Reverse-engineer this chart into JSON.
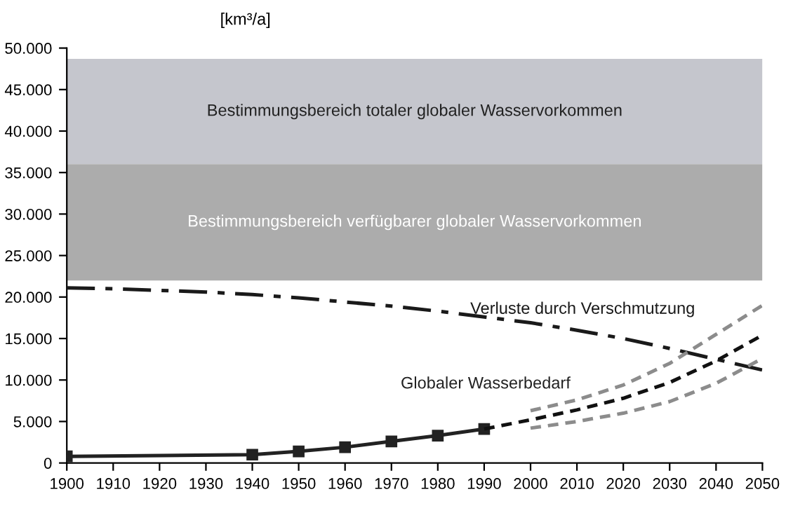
{
  "chart_data": {
    "type": "line",
    "ylabel": "[km³/a]",
    "xlim": [
      1900,
      2050
    ],
    "xticks": [
      1900,
      1910,
      1920,
      1930,
      1940,
      1950,
      1960,
      1970,
      1980,
      1990,
      2000,
      2010,
      2020,
      2030,
      2040,
      2050
    ],
    "ylim": [
      0,
      50000
    ],
    "yticks": [
      0,
      {
        "value": 5000,
        "label": "5.000"
      },
      {
        "value": 10000,
        "label": "10.000"
      },
      {
        "value": 15000,
        "label": "15.000"
      },
      {
        "value": 20000,
        "label": "20.000"
      },
      {
        "value": 25000,
        "label": "25.000"
      },
      {
        "value": 30000,
        "label": "30.000"
      },
      {
        "value": 35000,
        "label": "35.000"
      },
      {
        "value": 40000,
        "label": "40.000"
      },
      {
        "value": 45000,
        "label": "45.000"
      },
      {
        "value": 50000,
        "label": "50.000"
      }
    ],
    "grid": false,
    "legend": false,
    "bands": [
      {
        "axis": "y",
        "from": 36000,
        "to": 48700,
        "label": "Bestimmungsbereich totaler globaler Wasservorkommen",
        "color": "#c5c6cd"
      },
      {
        "axis": "y",
        "from": 22000,
        "to": 36000,
        "label": "Bestimmungsbereich verfügbarer globaler Wasservorkommen",
        "color": "#acacac"
      }
    ],
    "series": [
      {
        "name": "Verluste durch Verschmutzung",
        "color": "#1a1a1a",
        "line_style": "dashdot",
        "marker": "none",
        "x": [
          1900,
          1910,
          1920,
          1930,
          1940,
          1950,
          1960,
          1970,
          1980,
          1990,
          2000,
          2010,
          2020,
          2030,
          2040,
          2050
        ],
        "values": [
          21100,
          21000,
          20800,
          20600,
          20300,
          19900,
          19400,
          18900,
          18300,
          17600,
          16900,
          16000,
          15000,
          13800,
          12500,
          11200
        ]
      },
      {
        "name": "Globaler Wasserbedarf",
        "color": "#222222",
        "line_style": "solid",
        "marker": "square",
        "x": [
          1900,
          1940,
          1950,
          1960,
          1970,
          1980,
          1990
        ],
        "values": [
          800,
          1000,
          1400,
          1900,
          2600,
          3300,
          4100
        ]
      },
      {
        "color": "#111111",
        "line_style": "dashed",
        "marker": "none",
        "x": [
          1990,
          2000,
          2010,
          2020,
          2030,
          2040,
          2050
        ],
        "values": [
          4100,
          5200,
          6400,
          7800,
          9700,
          12300,
          15400
        ]
      },
      {
        "color": "#8c8c8c",
        "line_style": "dashed",
        "marker": "none",
        "x": [
          2000,
          2010,
          2020,
          2030,
          2040,
          2050
        ],
        "values": [
          6300,
          7600,
          9400,
          12000,
          15500,
          19000
        ]
      },
      {
        "color": "#8c8c8c",
        "line_style": "dashed",
        "marker": "none",
        "x": [
          2000,
          2010,
          2020,
          2030,
          2040,
          2050
        ],
        "values": [
          4200,
          5000,
          6000,
          7400,
          9600,
          12600
        ]
      }
    ]
  }
}
